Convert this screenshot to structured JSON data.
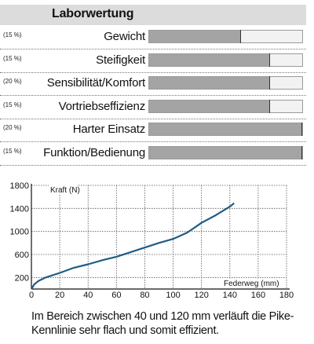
{
  "header": {
    "title": "Laborwertung"
  },
  "ratings": [
    {
      "weight": "(15 %)",
      "label": "Gewicht",
      "value": 0.6
    },
    {
      "weight": "(15 %)",
      "label": "Steifigkeit",
      "value": 0.79
    },
    {
      "weight": "(20 %)",
      "label": "Sensibilität/Komfort",
      "value": 0.79
    },
    {
      "weight": "(15 %)",
      "label": "Vortriebseffizienz",
      "value": 0.79
    },
    {
      "weight": "(20 %)",
      "label": "Harter Einsatz",
      "value": 1.0
    },
    {
      "weight": "(15 %)",
      "label": "Funktion/Bedienung",
      "value": 1.0
    }
  ],
  "chart_data": {
    "type": "line",
    "ylabel": "Kraft (N)",
    "xlabel": "Federweg (mm)",
    "xlim": [
      0,
      180
    ],
    "ylim": [
      0,
      1800
    ],
    "xticks": [
      "0",
      "20",
      "40",
      "60",
      "80",
      "100",
      "120",
      "140",
      "160",
      "180"
    ],
    "yticks": [
      "200",
      "600",
      "1000",
      "1400",
      "1800"
    ],
    "grid": true,
    "series": [
      {
        "color": "#1f5c84",
        "x": [
          0,
          2,
          5,
          10,
          20,
          30,
          40,
          50,
          60,
          70,
          80,
          90,
          100,
          110,
          120,
          130,
          140,
          143
        ],
        "y": [
          0,
          80,
          140,
          200,
          280,
          370,
          430,
          500,
          560,
          640,
          720,
          800,
          870,
          980,
          1150,
          1280,
          1430,
          1490
        ]
      }
    ]
  },
  "caption": "Im Bereich zwischen 40 und 120 mm verläuft die Pike-Kennlinie sehr flach und somit effizient."
}
